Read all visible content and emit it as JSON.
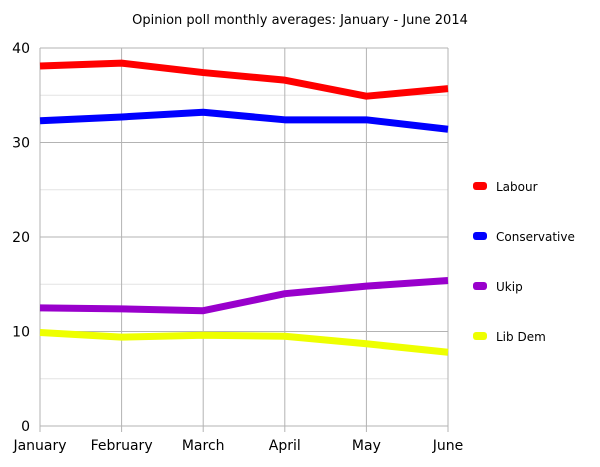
{
  "chart_data": {
    "type": "line",
    "title": "Opinion poll monthly averages: January - June 2014",
    "categories": [
      "January",
      "February",
      "March",
      "April",
      "May",
      "June"
    ],
    "ylim": [
      0,
      40
    ],
    "yticks": [
      0,
      10,
      20,
      30,
      40
    ],
    "grid": true,
    "legend": "right",
    "series": [
      {
        "name": "Labour",
        "color": "#ff0000",
        "values": [
          38.1,
          38.4,
          37.4,
          36.6,
          34.9,
          35.7
        ]
      },
      {
        "name": "Conservative",
        "color": "#0000ff",
        "values": [
          32.3,
          32.7,
          33.2,
          32.4,
          32.4,
          31.4
        ]
      },
      {
        "name": "Ukip",
        "color": "#9900cc",
        "values": [
          12.5,
          12.4,
          12.2,
          14.0,
          14.8,
          15.4
        ]
      },
      {
        "name": "Lib Dem",
        "color": "#eeff00",
        "values": [
          9.9,
          9.4,
          9.6,
          9.5,
          8.7,
          7.8
        ]
      }
    ]
  }
}
